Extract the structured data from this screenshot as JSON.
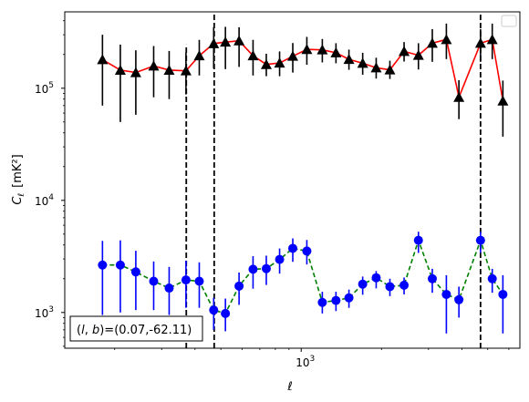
{
  "chart_data": {
    "type": "line",
    "title": "",
    "xlabel": "ℓ",
    "ylabel_main": "C",
    "ylabel_sub": "ℓ",
    "ylabel_unit": "[mK²]",
    "xscale": "log",
    "yscale": "log",
    "xlim": [
      130,
      6600
    ],
    "ylim": [
      480,
      480000
    ],
    "x_major_ticks": [
      {
        "value": 1000,
        "base": "10",
        "exp": "3"
      }
    ],
    "y_major_ticks": [
      {
        "value": 1000,
        "base": "10",
        "exp": "3"
      },
      {
        "value": 10000,
        "base": "10",
        "exp": "4"
      },
      {
        "value": 100000,
        "base": "10",
        "exp": "5"
      }
    ],
    "legend": "top-right, empty",
    "vlines": [
      371,
      472,
      4700
    ],
    "vline_ymax": [
      245000,
      480000,
      480000
    ],
    "annotation": {
      "text": "(l, b)=(0.07,-62.11)",
      "prefix_l": "l",
      "prefix_b": "b",
      "prefix_close": ")=",
      "values": "(0.07,-62.11)",
      "position": "bottom-left"
    },
    "series": [
      {
        "color": "#ff0000",
        "errorbar_color": "#000000",
        "marker": "triangle",
        "marker_color": "#000000",
        "linestyle": "solid",
        "x": [
          180,
          210,
          240,
          280,
          320,
          370,
          415,
          470,
          520,
          585,
          660,
          740,
          830,
          930,
          1050,
          1200,
          1350,
          1510,
          1700,
          1910,
          2150,
          2430,
          2750,
          3100,
          3500,
          3900,
          4700,
          5200,
          5700
        ],
        "y": [
          180000,
          145000,
          138000,
          158000,
          145000,
          143000,
          195000,
          250000,
          258000,
          265000,
          195000,
          163000,
          168000,
          193000,
          222000,
          220000,
          207000,
          181000,
          167000,
          152000,
          146000,
          213000,
          197000,
          252000,
          272000,
          83000,
          252000,
          272000,
          77000
        ],
        "err_low": [
          110000,
          95000,
          80000,
          75000,
          65000,
          55000,
          65000,
          100000,
          110000,
          110000,
          65000,
          35000,
          40000,
          55000,
          60000,
          50000,
          40000,
          35000,
          35000,
          30000,
          25000,
          40000,
          50000,
          80000,
          90000,
          30000,
          80000,
          90000,
          40000
        ],
        "err_high": [
          120000,
          100000,
          80000,
          80000,
          70000,
          65000,
          75000,
          100000,
          95000,
          85000,
          75000,
          40000,
          45000,
          60000,
          65000,
          55000,
          45000,
          40000,
          40000,
          35000,
          30000,
          45000,
          55000,
          85000,
          105000,
          35000,
          85000,
          105000,
          40000
        ]
      },
      {
        "color": "#008000",
        "errorbar_color": "#0000ff",
        "marker": "circle",
        "marker_color": "#0000ff",
        "linestyle": "dashed",
        "x": [
          180,
          210,
          240,
          280,
          320,
          370,
          415,
          470,
          520,
          585,
          660,
          740,
          830,
          930,
          1050,
          1200,
          1350,
          1510,
          1700,
          1910,
          2150,
          2430,
          2750,
          3100,
          3500,
          3900,
          4700,
          5200,
          5700
        ],
        "y": [
          2650,
          2650,
          2300,
          1900,
          1650,
          1950,
          1900,
          1050,
          980,
          1720,
          2430,
          2460,
          2970,
          3730,
          3530,
          1230,
          1280,
          1350,
          1790,
          2040,
          1700,
          1750,
          4400,
          2000,
          1450,
          1300,
          4400,
          2000,
          1450
        ],
        "err_low": [
          1700,
          1650,
          1250,
          850,
          700,
          850,
          800,
          350,
          300,
          550,
          800,
          700,
          750,
          900,
          850,
          250,
          250,
          250,
          350,
          400,
          300,
          300,
          1000,
          500,
          800,
          400,
          1000,
          500,
          800
        ],
        "err_high": [
          1700,
          1750,
          1250,
          950,
          900,
          950,
          900,
          300,
          350,
          550,
          750,
          750,
          750,
          850,
          900,
          300,
          250,
          250,
          300,
          300,
          300,
          300,
          850,
          450,
          700,
          400,
          850,
          450,
          700
        ]
      }
    ]
  }
}
